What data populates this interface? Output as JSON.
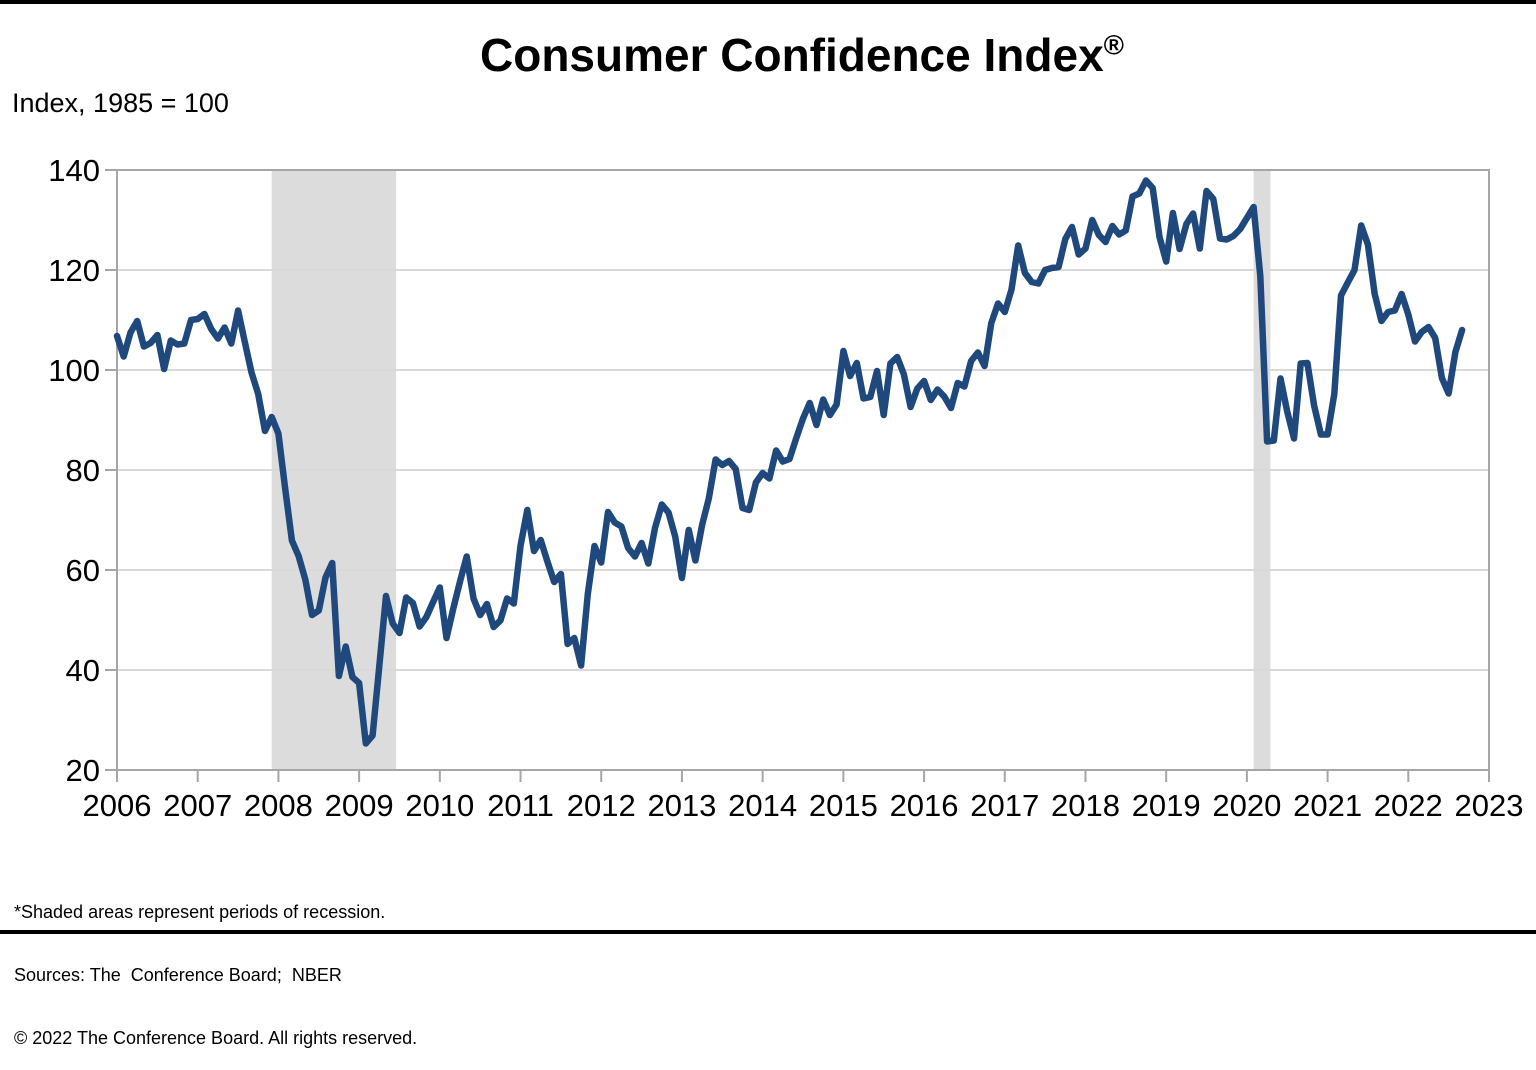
{
  "header": {
    "title": "Consumer Confidence Index",
    "registered_mark": "®",
    "subtitle": "Index, 1985 = 100"
  },
  "footnotes": {
    "line1": "*Shaded areas represent periods of recession.",
    "line2": "Sources: The  Conference Board;  NBER",
    "line3": "© 2022 The Conference Board. All rights reserved."
  },
  "chart_data": {
    "type": "line",
    "title": "Consumer Confidence Index®",
    "subtitle": "Index, 1985 = 100",
    "xlabel": "",
    "ylabel": "Index, 1985 = 100",
    "x_tick_labels": [
      "2006",
      "2007",
      "2008",
      "2009",
      "2010",
      "2011",
      "2012",
      "2013",
      "2014",
      "2015",
      "2016",
      "2017",
      "2018",
      "2019",
      "2020",
      "2021",
      "2022",
      "2023"
    ],
    "y_ticks": [
      20,
      40,
      60,
      80,
      100,
      120,
      140
    ],
    "ylim": [
      20,
      140
    ],
    "xlim_years": [
      2006,
      2023
    ],
    "grid": "horizontal",
    "legend": "none",
    "frequency": "monthly",
    "x_start": "2006-01",
    "x_end": "2022-09",
    "series": [
      {
        "name": "Consumer Confidence Index",
        "color": "#1F497D",
        "values_by_year": [
          {
            "year": 2006,
            "values": [
              106.8,
              102.7,
              107.5,
              109.8,
              104.7,
              105.4,
              107.0,
              100.2,
              105.9,
              105.1,
              105.3,
              110.0
            ]
          },
          {
            "year": 2007,
            "values": [
              110.2,
              111.2,
              108.2,
              106.3,
              108.5,
              105.3,
              111.9,
              105.6,
              99.5,
              95.2,
              87.8,
              90.6
            ]
          },
          {
            "year": 2008,
            "values": [
              87.3,
              76.4,
              65.9,
              62.8,
              58.1,
              51.0,
              51.9,
              58.5,
              61.4,
              38.8,
              44.7,
              38.6
            ]
          },
          {
            "year": 2009,
            "values": [
              37.4,
              25.3,
              26.9,
              40.8,
              54.8,
              49.3,
              47.4,
              54.5,
              53.4,
              48.7,
              50.6,
              53.6
            ]
          },
          {
            "year": 2010,
            "values": [
              56.5,
              46.4,
              52.3,
              57.7,
              62.7,
              54.3,
              51.0,
              53.2,
              48.6,
              49.9,
              54.3,
              53.3
            ]
          },
          {
            "year": 2011,
            "values": [
              64.8,
              72.0,
              63.8,
              66.0,
              61.7,
              57.6,
              59.2,
              45.2,
              46.4,
              40.9,
              55.2,
              64.8
            ]
          },
          {
            "year": 2012,
            "values": [
              61.5,
              71.6,
              69.5,
              68.7,
              64.4,
              62.7,
              65.4,
              61.3,
              68.4,
              73.1,
              71.5,
              66.7
            ]
          },
          {
            "year": 2013,
            "values": [
              58.4,
              68.0,
              61.9,
              69.0,
              74.3,
              82.1,
              81.0,
              81.8,
              80.2,
              72.4,
              72.0,
              77.5
            ]
          },
          {
            "year": 2014,
            "values": [
              79.4,
              78.3,
              83.9,
              81.7,
              82.2,
              86.4,
              90.3,
              93.4,
              89.0,
              94.1,
              91.0,
              93.1
            ]
          },
          {
            "year": 2015,
            "values": [
              103.8,
              98.8,
              101.4,
              94.3,
              94.6,
              99.8,
              91.0,
              101.3,
              102.6,
              99.1,
              92.6,
              96.3
            ]
          },
          {
            "year": 2016,
            "values": [
              97.8,
              94.0,
              96.1,
              94.7,
              92.4,
              97.4,
              96.7,
              101.8,
              103.5,
              100.8,
              109.4,
              113.3
            ]
          },
          {
            "year": 2017,
            "values": [
              111.6,
              116.1,
              124.9,
              119.4,
              117.6,
              117.3,
              120.0,
              120.4,
              120.6,
              126.2,
              128.6,
              123.1
            ]
          },
          {
            "year": 2018,
            "values": [
              124.3,
              130.0,
              127.0,
              125.6,
              128.8,
              127.1,
              127.9,
              134.7,
              135.3,
              137.9,
              136.4,
              126.6
            ]
          },
          {
            "year": 2019,
            "values": [
              121.7,
              131.4,
              124.2,
              129.2,
              131.3,
              124.3,
              135.8,
              134.2,
              126.3,
              126.1,
              126.8,
              128.2
            ]
          },
          {
            "year": 2020,
            "values": [
              130.4,
              132.6,
              118.8,
              85.7,
              85.9,
              98.3,
              91.7,
              86.3,
              101.3,
              101.4,
              92.9,
              87.1
            ]
          },
          {
            "year": 2021,
            "values": [
              87.1,
              95.2,
              114.9,
              117.5,
              120.0,
              128.9,
              125.1,
              115.2,
              109.8,
              111.6,
              111.9,
              115.2
            ]
          },
          {
            "year": 2022,
            "values": [
              111.1,
              105.7,
              107.6,
              108.6,
              106.4,
              98.4,
              95.3,
              103.6,
              108.0
            ]
          }
        ]
      }
    ],
    "recessions": [
      {
        "start": "2007-12",
        "end": "2009-06"
      },
      {
        "start": "2020-02",
        "end": "2020-04"
      }
    ],
    "colors": {
      "line": "#1F497D",
      "recession_band": "#DCDCDC",
      "gridline": "#D9D9D9",
      "axis": "#A6A6A6",
      "tick_label": "#000000"
    }
  }
}
